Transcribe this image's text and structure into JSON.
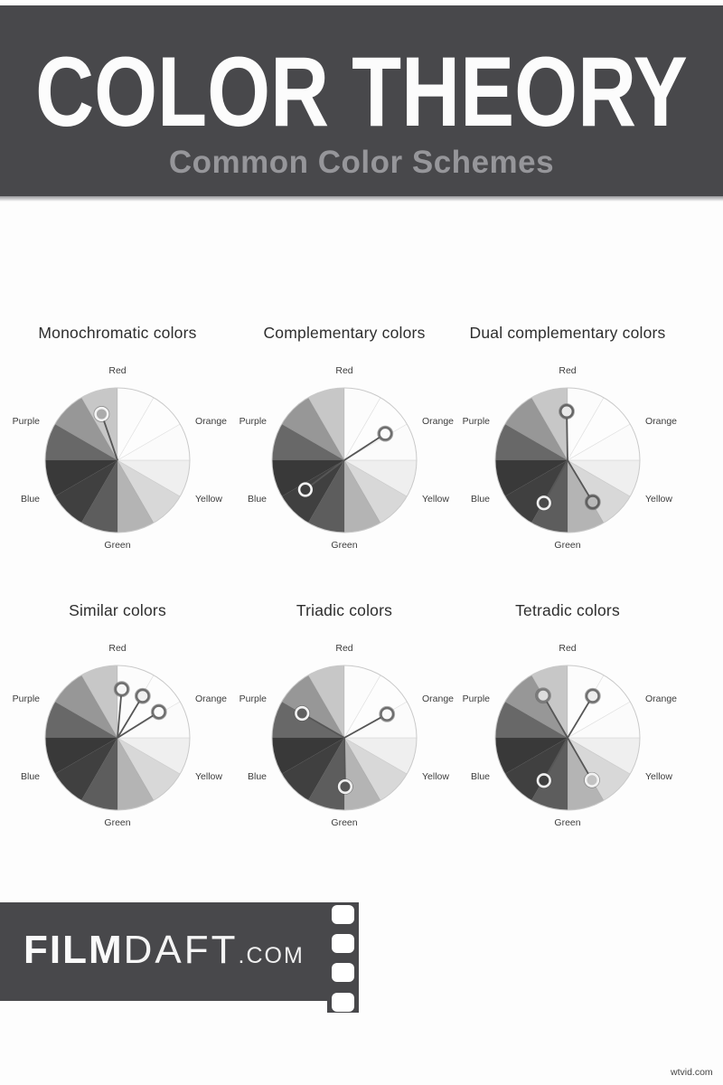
{
  "header": {
    "title": "COLOR THEORY",
    "subtitle": "Common Color Schemes",
    "bg_color": "#48484b",
    "title_color": "#fcfcfc",
    "subtitle_color": "#96969a"
  },
  "wheel": {
    "labels": [
      "Red",
      "Orange",
      "Yellow",
      "Green",
      "Blue",
      "Purple"
    ],
    "label_angles_deg": [
      0,
      60,
      120,
      180,
      240,
      300
    ],
    "label_color": "#3d3d3d",
    "segment_shades_clockwise_from_top": [
      "#fcfcfc",
      "#fdfdfd",
      "#fbfbfb",
      "#efefef",
      "#d8d8d8",
      "#b4b4b4",
      "#5d5d5d",
      "#404040",
      "#393939",
      "#686868",
      "#979797",
      "#c7c7c7"
    ],
    "rim_color": "#c9c9c9",
    "seam_color": "rgba(96,96,96,0.18)",
    "line_color": "#565656"
  },
  "schemes": [
    {
      "title": "Monochromatic colors",
      "markers": [
        {
          "angle": 341,
          "ring": "#f4f4f4",
          "fill": "#ababab"
        }
      ]
    },
    {
      "title": "Complementary colors",
      "markers": [
        {
          "angle": 57,
          "ring": "#6e6e6e",
          "fill": "#fbfbfb"
        },
        {
          "angle": 233,
          "ring": "#f4f4f4",
          "fill": "#3f3f3f"
        }
      ]
    },
    {
      "title": "Dual complementary colors",
      "markers": [
        {
          "angle": 359,
          "ring": "#666666",
          "fill": "#e9e9e9"
        },
        {
          "angle": 149,
          "ring": "#5f5f5f",
          "fill": "#b9b9b9"
        },
        {
          "angle": 209,
          "ring": "#efefef",
          "fill": "#4a4a4a"
        }
      ]
    },
    {
      "title": "Similar colors",
      "markers": [
        {
          "angle": 5,
          "ring": "#6e6e6e",
          "fill": "#f6f6f6"
        },
        {
          "angle": 31,
          "ring": "#6e6e6e",
          "fill": "#f0f0f0"
        },
        {
          "angle": 58,
          "ring": "#6e6e6e",
          "fill": "#fbfbfb"
        }
      ]
    },
    {
      "title": "Triadic colors",
      "markers": [
        {
          "angle": 61,
          "ring": "#6e6e6e",
          "fill": "#fbfbfb"
        },
        {
          "angle": 179,
          "ring": "#efefef",
          "fill": "#565656"
        },
        {
          "angle": 300,
          "ring": "#f2f2f2",
          "fill": "#606060"
        }
      ]
    },
    {
      "title": "Tetradic colors",
      "markers": [
        {
          "angle": 31,
          "ring": "#707070",
          "fill": "#ededed"
        },
        {
          "angle": 150,
          "ring": "#f2f2f2",
          "fill": "#c2c2c2"
        },
        {
          "angle": 209,
          "ring": "#efefef",
          "fill": "#3f3f3f"
        },
        {
          "angle": 330,
          "ring": "#7a7a7a",
          "fill": "#dcdcdc"
        }
      ]
    }
  ],
  "footer": {
    "brand_bold": "FILM",
    "brand_light": "DAFT",
    "brand_tld": ".COM",
    "bg_color": "#48484b"
  },
  "watermark": "wtvid.com"
}
